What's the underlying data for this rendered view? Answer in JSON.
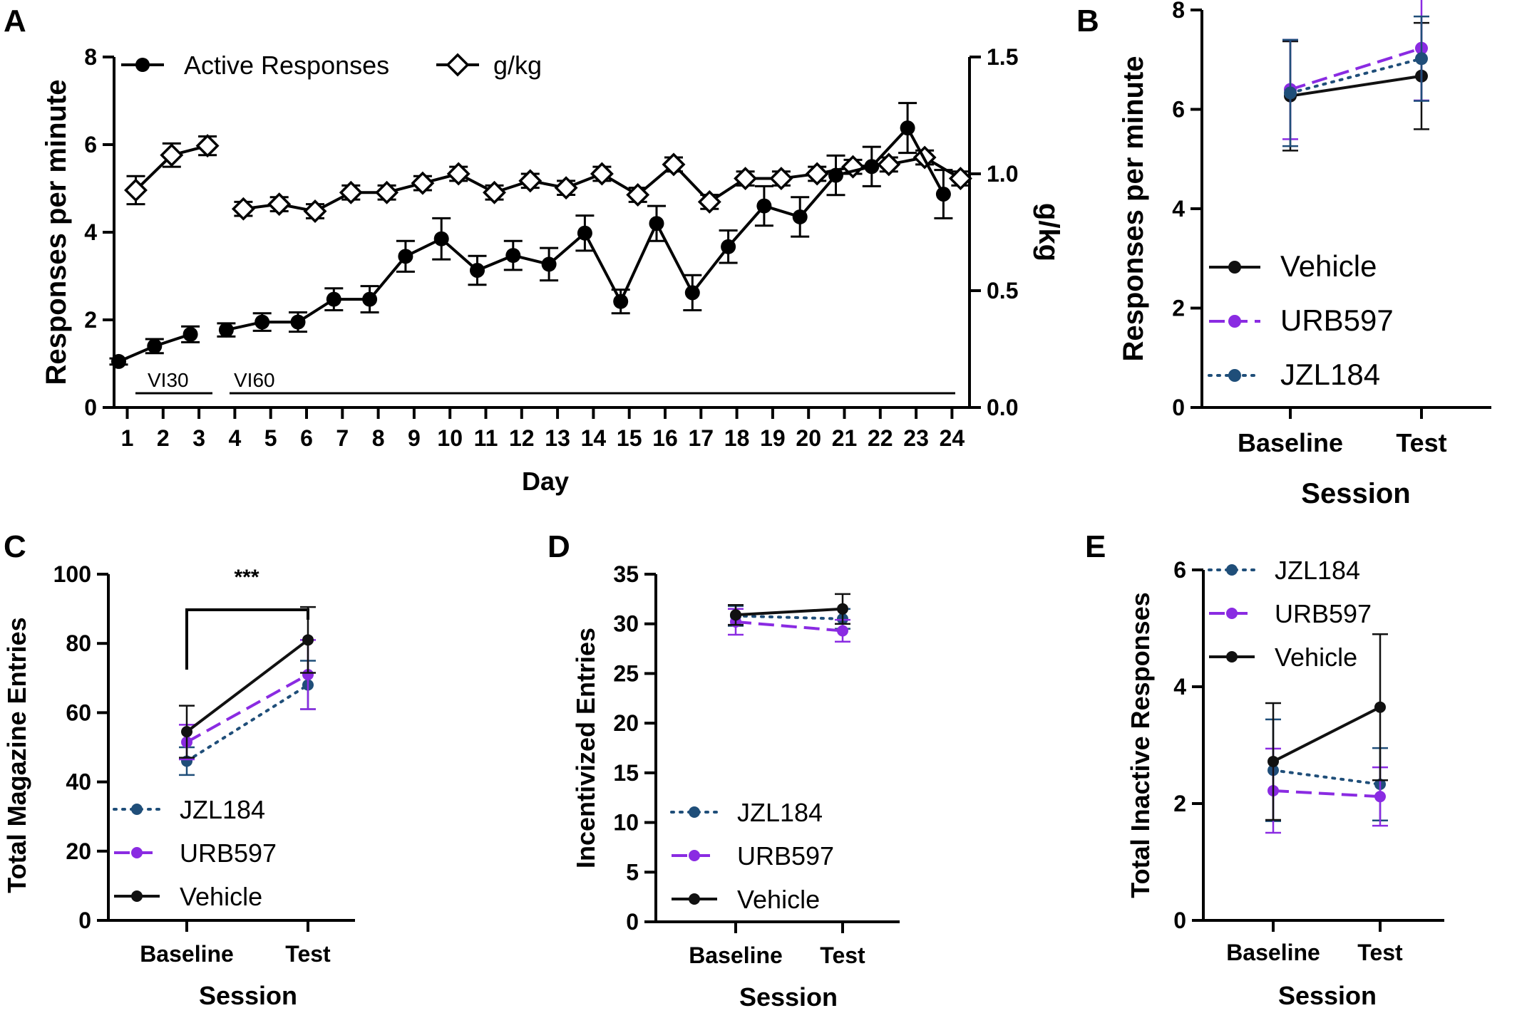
{
  "colors": {
    "vehicle": "#111111",
    "urb597": "#8a2be2",
    "jzl184": "#1f4e79"
  },
  "chart_data": [
    {
      "panel": "A",
      "type": "line",
      "xlabel": "Day",
      "ylabel": "Responses per minute",
      "ylabel_right": "g/kg",
      "ylim": [
        0,
        8
      ],
      "y_ticks": [
        "0",
        "2",
        "4",
        "6",
        "8"
      ],
      "ylim_right": [
        0,
        1.5
      ],
      "y_ticks_right": [
        "0.0",
        "0.5",
        "1.0",
        "1.5"
      ],
      "x_ticks": [
        "1",
        "2",
        "3",
        "4",
        "5",
        "6",
        "7",
        "8",
        "9",
        "10",
        "11",
        "12",
        "13",
        "14",
        "15",
        "16",
        "17",
        "18",
        "19",
        "20",
        "21",
        "22",
        "23",
        "24"
      ],
      "legend": [
        "Active Responses",
        "g/kg"
      ],
      "annotations": [
        "VI30",
        "VI60"
      ],
      "series": [
        {
          "name": "Active Responses",
          "axis": "left",
          "marker": "filled-circle",
          "x": [
            1,
            2,
            3,
            4,
            5,
            6,
            7,
            8,
            9,
            10,
            11,
            12,
            13,
            14,
            15,
            16,
            17,
            18,
            19,
            20,
            21,
            22,
            23,
            24
          ],
          "values": [
            1.05,
            1.4,
            1.67,
            1.77,
            1.95,
            1.95,
            2.47,
            2.47,
            3.45,
            3.85,
            3.13,
            3.47,
            3.27,
            3.98,
            2.42,
            4.2,
            2.62,
            3.67,
            4.6,
            4.35,
            5.3,
            5.5,
            6.38,
            4.87
          ],
          "errors": [
            0.07,
            0.16,
            0.18,
            0.15,
            0.2,
            0.22,
            0.25,
            0.3,
            0.35,
            0.47,
            0.33,
            0.33,
            0.37,
            0.4,
            0.27,
            0.4,
            0.4,
            0.37,
            0.45,
            0.45,
            0.45,
            0.45,
            0.57,
            0.55
          ]
        },
        {
          "name": "g/kg",
          "axis": "right",
          "marker": "open-diamond",
          "x": [
            1,
            2,
            3,
            4,
            5,
            6,
            7,
            8,
            9,
            10,
            11,
            12,
            13,
            14,
            15,
            16,
            17,
            18,
            19,
            20,
            21,
            22,
            23,
            24
          ],
          "values": [
            0.93,
            1.08,
            1.12,
            0.85,
            0.87,
            0.84,
            0.92,
            0.92,
            0.96,
            1.0,
            0.92,
            0.97,
            0.94,
            1.0,
            0.91,
            1.04,
            0.88,
            0.98,
            0.98,
            1.0,
            1.03,
            1.04,
            1.07,
            0.98
          ],
          "errors": [
            0.06,
            0.05,
            0.04,
            0.03,
            0.03,
            0.03,
            0.03,
            0.03,
            0.03,
            0.03,
            0.03,
            0.03,
            0.03,
            0.03,
            0.03,
            0.03,
            0.03,
            0.03,
            0.03,
            0.03,
            0.03,
            0.03,
            0.03,
            0.03
          ]
        }
      ]
    },
    {
      "panel": "B",
      "type": "line",
      "categories": [
        "Baseline",
        "Test"
      ],
      "xlabel": "Session",
      "ylabel": "Responses per minute",
      "ylim": [
        0,
        8
      ],
      "y_ticks": [
        "0",
        "2",
        "4",
        "6",
        "8"
      ],
      "legend_placement": "lower-left",
      "series": [
        {
          "name": "Vehicle",
          "values": [
            6.27,
            6.67
          ],
          "errors": [
            1.1,
            1.07
          ]
        },
        {
          "name": "URB597",
          "values": [
            6.4,
            7.23
          ],
          "errors": [
            1.0,
            1.05
          ]
        },
        {
          "name": "JZL184",
          "values": [
            6.33,
            7.02
          ],
          "errors": [
            1.07,
            0.85
          ]
        }
      ]
    },
    {
      "panel": "C",
      "type": "line",
      "categories": [
        "Baseline",
        "Test"
      ],
      "xlabel": "Session",
      "ylabel": "Total Magazine Entries",
      "ylim": [
        0,
        100
      ],
      "y_ticks": [
        "0",
        "20",
        "40",
        "60",
        "80",
        "100"
      ],
      "significance": "***",
      "legend_placement": "lower-left",
      "series": [
        {
          "name": "JZL184",
          "values": [
            46,
            68
          ],
          "errors": [
            4,
            7
          ]
        },
        {
          "name": "URB597",
          "values": [
            51.5,
            71
          ],
          "errors": [
            5,
            10
          ]
        },
        {
          "name": "Vehicle",
          "values": [
            54.5,
            81
          ],
          "errors": [
            7.5,
            9.5
          ]
        }
      ]
    },
    {
      "panel": "D",
      "type": "line",
      "categories": [
        "Baseline",
        "Test"
      ],
      "xlabel": "Session",
      "ylabel": "Incentivized Entries",
      "ylim": [
        0,
        35
      ],
      "y_ticks": [
        "0",
        "5",
        "10",
        "15",
        "20",
        "25",
        "30",
        "35"
      ],
      "legend_placement": "lower-left",
      "series": [
        {
          "name": "JZL184",
          "values": [
            30.8,
            30.5
          ],
          "errors": [
            1.0,
            1.0
          ]
        },
        {
          "name": "URB597",
          "values": [
            30.2,
            29.3
          ],
          "errors": [
            1.3,
            1.1
          ]
        },
        {
          "name": "Vehicle",
          "values": [
            30.9,
            31.5
          ],
          "errors": [
            1.0,
            1.5
          ]
        }
      ]
    },
    {
      "panel": "E",
      "type": "line",
      "categories": [
        "Baseline",
        "Test"
      ],
      "xlabel": "Session",
      "ylabel": "Total Inactive Responses",
      "ylim": [
        0,
        6
      ],
      "y_ticks": [
        "0",
        "2",
        "4",
        "6"
      ],
      "legend_placement": "upper-left",
      "series": [
        {
          "name": "JZL184",
          "values": [
            2.57,
            2.33
          ],
          "errors": [
            0.87,
            0.62
          ]
        },
        {
          "name": "URB597",
          "values": [
            2.22,
            2.12
          ],
          "errors": [
            0.72,
            0.5
          ]
        },
        {
          "name": "Vehicle",
          "values": [
            2.72,
            3.65
          ],
          "errors": [
            1.0,
            1.25
          ]
        }
      ]
    }
  ]
}
